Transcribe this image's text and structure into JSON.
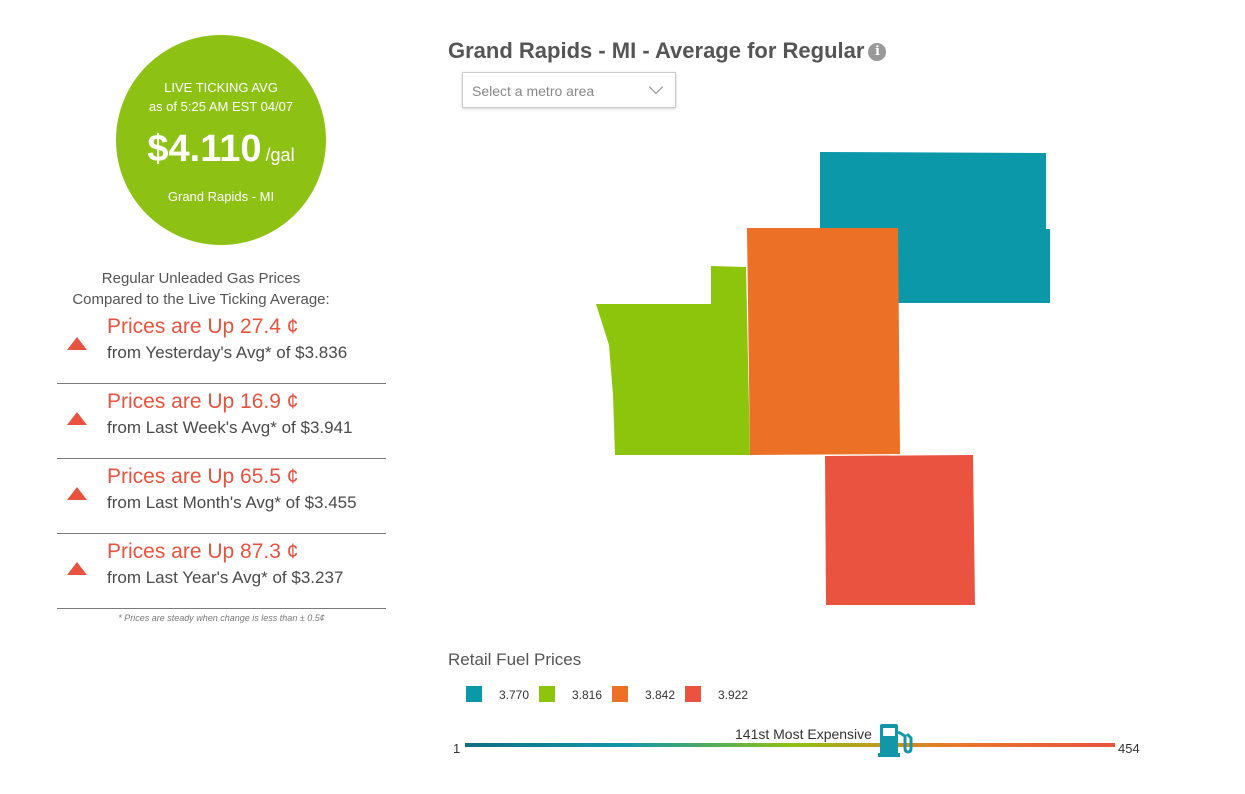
{
  "live": {
    "label": "LIVE TICKING AVG",
    "as_of": "as of   5:25 AM EST 04/07",
    "price": "$4.110",
    "unit": "/gal",
    "city": "Grand Rapids - MI"
  },
  "compare": {
    "title_line1": "Regular Unleaded Gas Prices",
    "title_line2": "Compared to the Live Ticking Average:",
    "rows": [
      {
        "direction": "Prices are Up 27.4 ¢",
        "from": "from Yesterday's Avg* of $3.836"
      },
      {
        "direction": "Prices are Up 16.9 ¢",
        "from": "from Last Week's Avg* of $3.941"
      },
      {
        "direction": "Prices are Up 65.5 ¢",
        "from": "from Last Month's Avg* of $3.455"
      },
      {
        "direction": "Prices are Up 87.3 ¢",
        "from": "from Last Year's Avg* of $3.237"
      }
    ],
    "note": "* Prices are steady when change is less than ± 0.5¢"
  },
  "header": {
    "title": "Grand Rapids - MI - Average for Regular",
    "info_icon": "i"
  },
  "metro_select": {
    "placeholder": "Select a metro area"
  },
  "map": {
    "regions": [
      {
        "color": "#0b99aa"
      },
      {
        "color": "#8cc50c"
      },
      {
        "color": "#ec7025"
      },
      {
        "color": "#e9533f"
      }
    ]
  },
  "legend": {
    "title": "Retail Fuel Prices",
    "items": [
      {
        "value": "3.770",
        "color": "#0b99aa"
      },
      {
        "value": "3.816",
        "color": "#8cc50c"
      },
      {
        "value": "3.842",
        "color": "#ec7025"
      },
      {
        "value": "3.922",
        "color": "#e9533f"
      }
    ]
  },
  "ranking": {
    "min": "1",
    "max": "454",
    "text": "141st Most Expensive",
    "position_fraction": 0.309,
    "icon": "gas-pump-icon"
  }
}
